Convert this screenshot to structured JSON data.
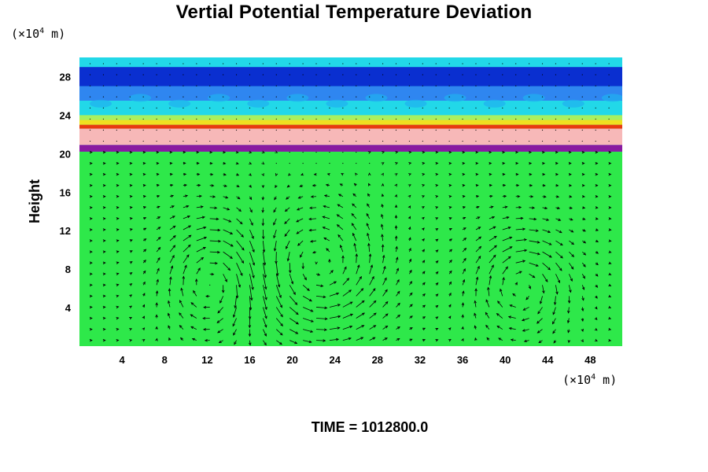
{
  "chart_data": {
    "type": "heatmap",
    "title": "Vertial Potential Temperature Deviation",
    "ylabel": "Height",
    "xlabel": "",
    "x_unit_label": "(×10",
    "x_unit_exp": "4",
    "x_unit_tail": " m)",
    "y_unit_label": "(×10",
    "y_unit_exp": "4",
    "y_unit_tail": " m)",
    "xlim": [
      0,
      51
    ],
    "ylim": [
      0,
      30
    ],
    "x_ticks": [
      4,
      8,
      12,
      16,
      20,
      24,
      28,
      32,
      36,
      40,
      44,
      48
    ],
    "y_ticks": [
      4,
      8,
      12,
      16,
      20,
      24,
      28
    ],
    "layers": [
      {
        "y_from": 27.0,
        "y_to": 29.0,
        "color": "#0a2fd0"
      },
      {
        "y_from": 25.5,
        "y_to": 27.0,
        "color": "#2f86f0"
      },
      {
        "y_from": 24.0,
        "y_to": 25.5,
        "color": "#22d8e8"
      },
      {
        "y_from": 23.5,
        "y_to": 24.0,
        "color": "#a8f060"
      },
      {
        "y_from": 23.0,
        "y_to": 23.5,
        "color": "#f0e020"
      },
      {
        "y_from": 22.6,
        "y_to": 23.0,
        "color": "#e83a10"
      },
      {
        "y_from": 20.9,
        "y_to": 22.6,
        "color": "#f7b8b8"
      },
      {
        "y_from": 20.2,
        "y_to": 20.9,
        "color": "#8a1aa0"
      },
      {
        "y_from": 0.0,
        "y_to": 20.2,
        "color": "#2ee84a"
      }
    ],
    "vortices": [
      {
        "cx": 12.5,
        "cy": 7.0,
        "rx": 4.0,
        "ry": 5.5,
        "sense": -1
      },
      {
        "cx": 22.5,
        "cy": 8.0,
        "rx": 5.5,
        "ry": 6.5,
        "sense": 1
      },
      {
        "cx": 41.5,
        "cy": 6.5,
        "rx": 4.0,
        "ry": 5.0,
        "sense": -1
      }
    ]
  },
  "footer": {
    "time_text": "TIME = 1012800.0"
  }
}
